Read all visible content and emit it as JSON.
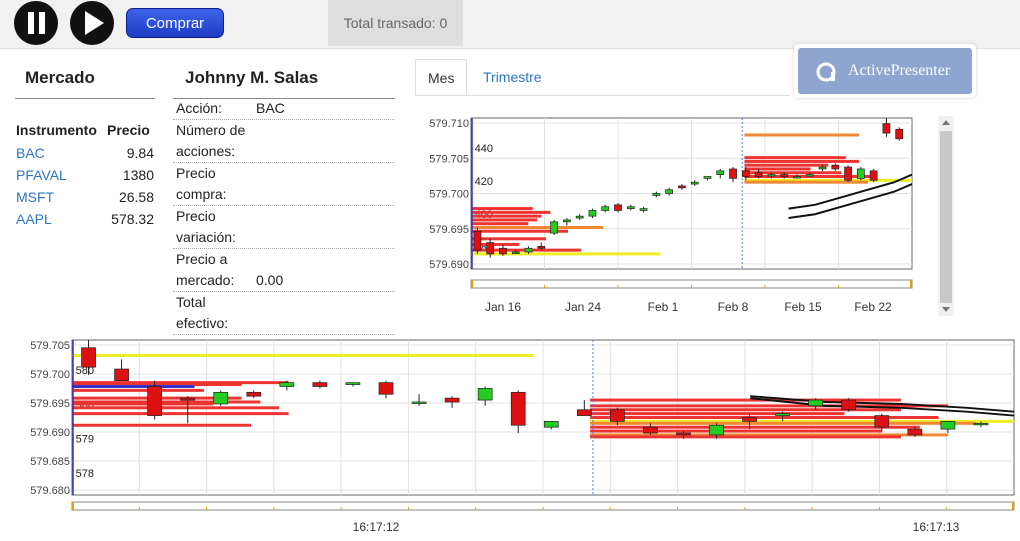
{
  "toolbar": {
    "pause_icon": "pause-icon",
    "play_icon": "play-icon",
    "buy_label": "Comprar",
    "total_label": "Total transado: 0"
  },
  "badge": {
    "icon": "activepresenter-logo-icon",
    "text": "ActivePresenter"
  },
  "market": {
    "title": "Mercado",
    "col_instrument": "Instrumento",
    "col_price": "Precio",
    "rows": [
      {
        "symbol": "BAC",
        "price": "9.84"
      },
      {
        "symbol": "PFAVAL",
        "price": "1380"
      },
      {
        "symbol": "MSFT",
        "price": "26.58"
      },
      {
        "symbol": "AAPL",
        "price": "578.32"
      }
    ]
  },
  "user": {
    "name": "Johnny M. Salas",
    "fields": [
      {
        "label": "Acción:",
        "value": "BAC"
      },
      {
        "label": "Número de acciones:",
        "value": ""
      },
      {
        "label": "Precio compra:",
        "value": ""
      },
      {
        "label": "Precio variación:",
        "value": ""
      },
      {
        "label": "Precio a mercado:",
        "value": "0.00"
      },
      {
        "label": "Total efectivo:",
        "value": ""
      }
    ]
  },
  "tabs": [
    {
      "label": "Mes",
      "active": true
    },
    {
      "label": "Trimestre",
      "active": false
    }
  ],
  "colors": {
    "up": "#22cc22",
    "down": "#dd1111",
    "ma": "#111111",
    "bar_red": "#ee3333",
    "bar_orange": "#ee8833",
    "bar_yellow": "#eeee22",
    "bar_blue": "#3333cc",
    "marker": "#5577ee"
  },
  "chart_data": [
    {
      "type": "candlestick",
      "name": "month-chart",
      "y_left_ticks": [
        "579.710",
        "579.705",
        "579.700",
        "579.695",
        "579.690"
      ],
      "y_right_ticks": [
        "440",
        "420",
        "400",
        "380"
      ],
      "x_ticks": [
        "Jan 16",
        "Jan 24",
        "Feb 1",
        "Feb 8",
        "Feb 15",
        "Feb 22"
      ],
      "ylim": [
        372,
        452
      ],
      "candles": [
        {
          "o": 392,
          "h": 394,
          "l": 380,
          "c": 382
        },
        {
          "o": 386,
          "h": 388,
          "l": 378,
          "c": 380
        },
        {
          "o": 383,
          "h": 385,
          "l": 379,
          "c": 380
        },
        {
          "o": 381,
          "h": 382,
          "l": 380,
          "c": 381
        },
        {
          "o": 381,
          "h": 384,
          "l": 380,
          "c": 383
        },
        {
          "o": 384,
          "h": 386,
          "l": 382,
          "c": 383
        },
        {
          "o": 391,
          "h": 398,
          "l": 390,
          "c": 397
        },
        {
          "o": 397,
          "h": 399,
          "l": 395,
          "c": 398
        },
        {
          "o": 399,
          "h": 401,
          "l": 398,
          "c": 400
        },
        {
          "o": 400,
          "h": 404,
          "l": 399,
          "c": 403
        },
        {
          "o": 403,
          "h": 406,
          "l": 402,
          "c": 405
        },
        {
          "o": 406,
          "h": 407,
          "l": 402,
          "c": 403
        },
        {
          "o": 404,
          "h": 406,
          "l": 403,
          "c": 405
        },
        {
          "o": 403,
          "h": 405,
          "l": 402,
          "c": 404
        },
        {
          "o": 411,
          "h": 413,
          "l": 410,
          "c": 412
        },
        {
          "o": 412,
          "h": 415,
          "l": 411,
          "c": 414
        },
        {
          "o": 416,
          "h": 417,
          "l": 414,
          "c": 415
        },
        {
          "o": 417,
          "h": 419,
          "l": 416,
          "c": 418
        },
        {
          "o": 420,
          "h": 421,
          "l": 419,
          "c": 421
        },
        {
          "o": 422,
          "h": 425,
          "l": 420,
          "c": 424
        },
        {
          "o": 425,
          "h": 426,
          "l": 418,
          "c": 420
        },
        {
          "o": 424,
          "h": 426,
          "l": 419,
          "c": 421
        },
        {
          "o": 423,
          "h": 425,
          "l": 420,
          "c": 421
        },
        {
          "o": 422,
          "h": 423,
          "l": 420,
          "c": 422
        },
        {
          "o": 422,
          "h": 423,
          "l": 420,
          "c": 421
        },
        {
          "o": 421,
          "h": 422,
          "l": 420,
          "c": 421
        },
        {
          "o": 422,
          "h": 423,
          "l": 421,
          "c": 422
        },
        {
          "o": 425,
          "h": 427,
          "l": 424,
          "c": 426
        },
        {
          "o": 427,
          "h": 428,
          "l": 424,
          "c": 425
        },
        {
          "o": 426,
          "h": 427,
          "l": 418,
          "c": 419
        },
        {
          "o": 420,
          "h": 426,
          "l": 419,
          "c": 425
        },
        {
          "o": 424,
          "h": 425,
          "l": 418,
          "c": 419
        },
        {
          "o": 449,
          "h": 452,
          "l": 442,
          "c": 444
        },
        {
          "o": 446,
          "h": 447,
          "l": 440,
          "c": 441
        }
      ],
      "moving_averages": [
        [
          [
            0.72,
            404
          ],
          [
            0.78,
            406
          ],
          [
            0.84,
            410
          ],
          [
            0.9,
            414
          ],
          [
            0.96,
            418
          ],
          [
            1.0,
            422
          ]
        ],
        [
          [
            0.72,
            399
          ],
          [
            0.78,
            401
          ],
          [
            0.84,
            405
          ],
          [
            0.9,
            409
          ],
          [
            0.96,
            413
          ],
          [
            1.0,
            417
          ]
        ]
      ],
      "volume_bars": [
        {
          "x0": 0.0,
          "x1": 0.14,
          "y": 404,
          "color": "red"
        },
        {
          "x0": 0.0,
          "x1": 0.18,
          "y": 402,
          "color": "red"
        },
        {
          "x0": 0.0,
          "x1": 0.16,
          "y": 400,
          "color": "red"
        },
        {
          "x0": 0.0,
          "x1": 0.15,
          "y": 398,
          "color": "red"
        },
        {
          "x0": 0.0,
          "x1": 0.13,
          "y": 396,
          "color": "red"
        },
        {
          "x0": 0.0,
          "x1": 0.3,
          "y": 394,
          "color": "orange"
        },
        {
          "x0": 0.0,
          "x1": 0.22,
          "y": 392,
          "color": "red"
        },
        {
          "x0": 0.0,
          "x1": 0.17,
          "y": 388,
          "color": "red"
        },
        {
          "x0": 0.0,
          "x1": 0.11,
          "y": 385,
          "color": "red"
        },
        {
          "x0": 0.0,
          "x1": 0.25,
          "y": 382,
          "color": "red"
        },
        {
          "x0": 0.0,
          "x1": 0.43,
          "y": 380,
          "color": "yellow"
        },
        {
          "x0": 0.62,
          "x1": 0.88,
          "y": 443,
          "color": "orange"
        },
        {
          "x0": 0.62,
          "x1": 0.85,
          "y": 431,
          "color": "red"
        },
        {
          "x0": 0.62,
          "x1": 0.88,
          "y": 429,
          "color": "red"
        },
        {
          "x0": 0.62,
          "x1": 0.81,
          "y": 427,
          "color": "red"
        },
        {
          "x0": 0.62,
          "x1": 0.77,
          "y": 425,
          "color": "red"
        },
        {
          "x0": 0.62,
          "x1": 0.84,
          "y": 423,
          "color": "red"
        },
        {
          "x0": 0.62,
          "x1": 0.92,
          "y": 421,
          "color": "red"
        },
        {
          "x0": 0.62,
          "x1": 1.0,
          "y": 419,
          "color": "yellow"
        },
        {
          "x0": 0.62,
          "x1": 0.9,
          "y": 418,
          "color": "orange"
        }
      ],
      "marker_x": 0.615
    },
    {
      "type": "candlestick",
      "name": "intraday-chart",
      "y_left_ticks": [
        "579.705",
        "579.700",
        "579.695",
        "579.690",
        "579.685",
        "579.680"
      ],
      "y_right_ticks": [
        "580",
        "580",
        "579",
        "578"
      ],
      "x_ticks": [
        "16:17:12",
        "16:17:13"
      ],
      "ylim": [
        575,
        583
      ],
      "candles": [
        {
          "o": 582.6,
          "h": 583,
          "l": 581.2,
          "c": 581.6
        },
        {
          "o": 581.5,
          "h": 582,
          "l": 580.9,
          "c": 580.9
        },
        {
          "o": 580.6,
          "h": 580.9,
          "l": 578.9,
          "c": 579.1
        },
        {
          "o": 580.0,
          "h": 580.1,
          "l": 578.7,
          "c": 579.9
        },
        {
          "o": 579.7,
          "h": 580.4,
          "l": 579.6,
          "c": 580.3
        },
        {
          "o": 580.3,
          "h": 580.4,
          "l": 580.0,
          "c": 580.1
        },
        {
          "o": 580.6,
          "h": 580.9,
          "l": 580.4,
          "c": 580.8
        },
        {
          "o": 580.8,
          "h": 580.9,
          "l": 580.5,
          "c": 580.6
        },
        {
          "o": 580.7,
          "h": 580.8,
          "l": 580.6,
          "c": 580.8
        },
        {
          "o": 580.8,
          "h": 580.9,
          "l": 580.0,
          "c": 580.2
        },
        {
          "o": 579.8,
          "h": 580.2,
          "l": 579.6,
          "c": 579.8
        },
        {
          "o": 580.0,
          "h": 580.1,
          "l": 579.5,
          "c": 579.8
        },
        {
          "o": 579.9,
          "h": 580.6,
          "l": 579.6,
          "c": 580.5
        },
        {
          "o": 580.3,
          "h": 580.4,
          "l": 578.2,
          "c": 578.6
        },
        {
          "o": 578.5,
          "h": 578.8,
          "l": 578.4,
          "c": 578.8
        },
        {
          "o": 579.4,
          "h": 579.9,
          "l": 579.1,
          "c": 579.1
        },
        {
          "o": 579.4,
          "h": 579.5,
          "l": 578.6,
          "c": 578.8
        },
        {
          "o": 578.5,
          "h": 578.7,
          "l": 578.1,
          "c": 578.2
        },
        {
          "o": 578.2,
          "h": 578.3,
          "l": 577.9,
          "c": 578.1
        },
        {
          "o": 578.1,
          "h": 578.7,
          "l": 577.9,
          "c": 578.6
        },
        {
          "o": 579.0,
          "h": 579.2,
          "l": 578.4,
          "c": 578.8
        },
        {
          "o": 579.1,
          "h": 579.3,
          "l": 578.8,
          "c": 579.2
        },
        {
          "o": 579.6,
          "h": 580.0,
          "l": 579.4,
          "c": 579.9
        },
        {
          "o": 579.9,
          "h": 580.0,
          "l": 579.3,
          "c": 579.4
        },
        {
          "o": 579.1,
          "h": 579.2,
          "l": 578.3,
          "c": 578.5
        },
        {
          "o": 578.4,
          "h": 578.5,
          "l": 578.0,
          "c": 578.1
        },
        {
          "o": 578.4,
          "h": 578.8,
          "l": 578.2,
          "c": 578.8
        },
        {
          "o": 578.7,
          "h": 578.8,
          "l": 578.5,
          "c": 578.7
        }
      ],
      "moving_averages": [
        [
          [
            0.72,
            580.0
          ],
          [
            0.8,
            579.6
          ],
          [
            0.88,
            579.5
          ],
          [
            0.95,
            579.3
          ],
          [
            1.0,
            579.1
          ]
        ],
        [
          [
            0.72,
            580.1
          ],
          [
            0.8,
            579.8
          ],
          [
            0.88,
            579.7
          ],
          [
            0.95,
            579.5
          ],
          [
            1.0,
            579.3
          ]
        ]
      ],
      "volume_bars": [
        {
          "x0": 0.0,
          "x1": 0.49,
          "y": 582.2,
          "color": "yellow"
        },
        {
          "x0": 0.0,
          "x1": 0.23,
          "y": 580.8,
          "color": "red"
        },
        {
          "x0": 0.0,
          "x1": 0.18,
          "y": 580.7,
          "color": "red"
        },
        {
          "x0": 0.0,
          "x1": 0.13,
          "y": 580.6,
          "color": "blue"
        },
        {
          "x0": 0.0,
          "x1": 0.14,
          "y": 580.4,
          "color": "red"
        },
        {
          "x0": 0.0,
          "x1": 0.18,
          "y": 580.0,
          "color": "red"
        },
        {
          "x0": 0.0,
          "x1": 0.2,
          "y": 579.8,
          "color": "red"
        },
        {
          "x0": 0.0,
          "x1": 0.15,
          "y": 579.7,
          "color": "red"
        },
        {
          "x0": 0.0,
          "x1": 0.22,
          "y": 579.5,
          "color": "red"
        },
        {
          "x0": 0.0,
          "x1": 0.23,
          "y": 579.2,
          "color": "red"
        },
        {
          "x0": 0.0,
          "x1": 0.19,
          "y": 578.6,
          "color": "red"
        },
        {
          "x0": 0.55,
          "x1": 0.88,
          "y": 579.9,
          "color": "red"
        },
        {
          "x0": 0.55,
          "x1": 0.93,
          "y": 579.6,
          "color": "red"
        },
        {
          "x0": 0.55,
          "x1": 0.88,
          "y": 579.4,
          "color": "red"
        },
        {
          "x0": 0.55,
          "x1": 0.82,
          "y": 579.2,
          "color": "red"
        },
        {
          "x0": 0.55,
          "x1": 0.92,
          "y": 579.0,
          "color": "red"
        },
        {
          "x0": 0.55,
          "x1": 1.0,
          "y": 578.8,
          "color": "yellow"
        },
        {
          "x0": 0.55,
          "x1": 0.96,
          "y": 578.7,
          "color": "orange"
        },
        {
          "x0": 0.55,
          "x1": 0.9,
          "y": 578.5,
          "color": "red"
        },
        {
          "x0": 0.55,
          "x1": 0.86,
          "y": 578.3,
          "color": "red"
        },
        {
          "x0": 0.55,
          "x1": 0.93,
          "y": 578.1,
          "color": "orange"
        },
        {
          "x0": 0.55,
          "x1": 0.88,
          "y": 578.0,
          "color": "red"
        }
      ],
      "marker_x": 0.553
    }
  ]
}
